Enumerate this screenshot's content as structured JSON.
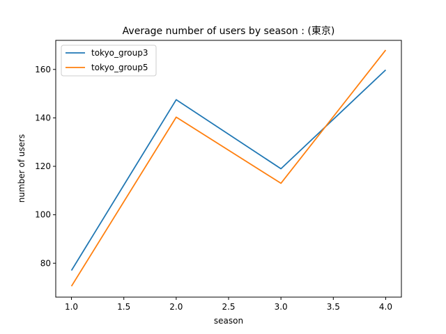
{
  "chart_data": {
    "type": "line",
    "title": "Average number of users by season : (東京)",
    "xlabel": "season",
    "ylabel": "number of users",
    "xlim": [
      0.85,
      4.15
    ],
    "ylim": [
      66,
      172
    ],
    "xticks": [
      1.0,
      1.5,
      2.0,
      2.5,
      3.0,
      3.5,
      4.0
    ],
    "xtick_labels": [
      "1.0",
      "1.5",
      "2.0",
      "2.5",
      "3.0",
      "3.5",
      "4.0"
    ],
    "yticks": [
      80,
      100,
      120,
      140,
      160
    ],
    "ytick_labels": [
      "80",
      "100",
      "120",
      "140",
      "160"
    ],
    "grid": false,
    "legend_position": "upper-left",
    "x": [
      1,
      2,
      3,
      4
    ],
    "series": [
      {
        "name": "tokyo_group3",
        "color": "#1f77b4",
        "values": [
          77,
          147.5,
          119,
          159.8
        ]
      },
      {
        "name": "tokyo_group5",
        "color": "#ff7f0e",
        "values": [
          70.5,
          140.3,
          113,
          168
        ]
      }
    ]
  }
}
